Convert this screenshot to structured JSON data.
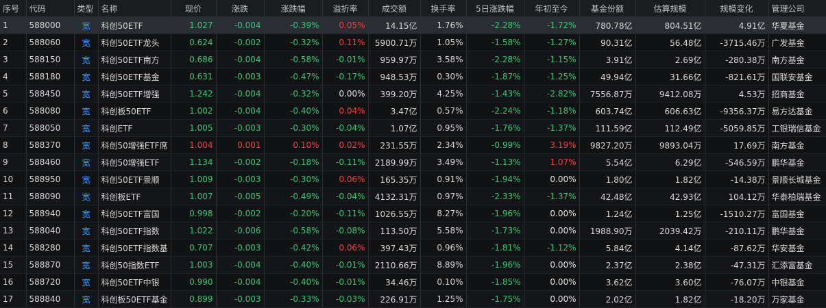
{
  "headers": [
    "序号",
    "代码",
    "类型",
    "名称",
    "现价",
    "涨跌",
    "涨跌幅",
    "溢折率",
    "成交额",
    "换手率",
    "5日涨跌幅",
    "年初至今",
    "基金份额",
    "估算规模",
    "规模变化",
    "管理公司"
  ],
  "colors": {
    "up": "#ff3b3b",
    "down": "#2ecc71",
    "neutral": "#e6e6e6",
    "type": "#3fa0ff"
  },
  "rows": [
    {
      "no": "1",
      "code": "588000",
      "type": "宽",
      "name": "科创50ETF",
      "price": "1.027",
      "chg": "-0.004",
      "pct": "-0.39%",
      "prem": "0.05%",
      "amount": "14.15亿",
      "turnover": "1.76%",
      "d5": "-2.28%",
      "ytd": "-1.72%",
      "shares": "780.78亿",
      "scale": "804.51亿",
      "scale_chg": "4.91亿",
      "mgr": "华夏基金"
    },
    {
      "no": "2",
      "code": "588060",
      "type": "宽",
      "name": "科创50ETF龙头",
      "price": "0.624",
      "chg": "-0.002",
      "pct": "-0.32%",
      "prem": "0.11%",
      "amount": "5900.71万",
      "turnover": "1.05%",
      "d5": "-1.58%",
      "ytd": "-1.27%",
      "shares": "90.31亿",
      "scale": "56.48亿",
      "scale_chg": "-3715.46万",
      "mgr": "广发基金"
    },
    {
      "no": "3",
      "code": "588150",
      "type": "宽",
      "name": "科创50ETF南方",
      "price": "0.686",
      "chg": "-0.004",
      "pct": "-0.58%",
      "prem": "-0.01%",
      "amount": "959.97万",
      "turnover": "3.58%",
      "d5": "-2.28%",
      "ytd": "-1.15%",
      "shares": "3.91亿",
      "scale": "2.69亿",
      "scale_chg": "-280.38万",
      "mgr": "南方基金"
    },
    {
      "no": "4",
      "code": "588180",
      "type": "宽",
      "name": "科创50ETF基金",
      "price": "0.631",
      "chg": "-0.003",
      "pct": "-0.47%",
      "prem": "-0.17%",
      "amount": "948.53万",
      "turnover": "0.30%",
      "d5": "-1.87%",
      "ytd": "-1.25%",
      "shares": "49.94亿",
      "scale": "31.66亿",
      "scale_chg": "-821.61万",
      "mgr": "国联安基金"
    },
    {
      "no": "5",
      "code": "588450",
      "type": "宽",
      "name": "科创50ETF增强",
      "price": "1.242",
      "chg": "-0.004",
      "pct": "-0.32%",
      "prem": "0.00%",
      "amount": "399.20万",
      "turnover": "4.25%",
      "d5": "-1.43%",
      "ytd": "-2.82%",
      "shares": "7556.87万",
      "scale": "9412.08万",
      "scale_chg": "4.53万",
      "mgr": "招商基金"
    },
    {
      "no": "6",
      "code": "588080",
      "type": "宽",
      "name": "科创板50ETF",
      "price": "1.002",
      "chg": "-0.004",
      "pct": "-0.40%",
      "prem": "0.04%",
      "amount": "3.47亿",
      "turnover": "0.57%",
      "d5": "-2.24%",
      "ytd": "-1.18%",
      "shares": "603.74亿",
      "scale": "606.63亿",
      "scale_chg": "-9356.37万",
      "mgr": "易方达基金"
    },
    {
      "no": "7",
      "code": "588050",
      "type": "宽",
      "name": "科创ETF",
      "price": "1.005",
      "chg": "-0.003",
      "pct": "-0.30%",
      "prem": "-0.04%",
      "amount": "1.07亿",
      "turnover": "0.95%",
      "d5": "-1.76%",
      "ytd": "-1.37%",
      "shares": "111.59亿",
      "scale": "112.49亿",
      "scale_chg": "-5059.85万",
      "mgr": "工银瑞信基金"
    },
    {
      "no": "8",
      "code": "588370",
      "type": "宽",
      "name": "科创50增强ETF席",
      "price": "1.004",
      "chg": "0.001",
      "pct": "0.10%",
      "prem": "0.02%",
      "amount": "231.55万",
      "turnover": "2.34%",
      "d5": "-0.99%",
      "ytd": "3.19%",
      "shares": "9827.20万",
      "scale": "9893.04万",
      "scale_chg": "17.69万",
      "mgr": "南方基金"
    },
    {
      "no": "9",
      "code": "588460",
      "type": "宽",
      "name": "科创50增强ETF",
      "price": "1.134",
      "chg": "-0.002",
      "pct": "-0.18%",
      "prem": "-0.11%",
      "amount": "2189.99万",
      "turnover": "3.49%",
      "d5": "-1.13%",
      "ytd": "1.07%",
      "shares": "5.54亿",
      "scale": "6.29亿",
      "scale_chg": "-546.59万",
      "mgr": "鹏华基金"
    },
    {
      "no": "10",
      "code": "588950",
      "type": "宽",
      "name": "科创50ETF景顺",
      "price": "1.009",
      "chg": "-0.003",
      "pct": "-0.30%",
      "prem": "0.06%",
      "amount": "165.35万",
      "turnover": "0.91%",
      "d5": "-1.94%",
      "ytd": "0.00%",
      "shares": "1.80亿",
      "scale": "1.82亿",
      "scale_chg": "-14.38万",
      "mgr": "景顺长城基金"
    },
    {
      "no": "11",
      "code": "588090",
      "type": "宽",
      "name": "科创板ETF",
      "price": "1.007",
      "chg": "-0.005",
      "pct": "-0.49%",
      "prem": "-0.04%",
      "amount": "4132.31万",
      "turnover": "0.97%",
      "d5": "-2.33%",
      "ytd": "-1.37%",
      "shares": "42.48亿",
      "scale": "42.93亿",
      "scale_chg": "104.12万",
      "mgr": "华泰柏瑞基金"
    },
    {
      "no": "12",
      "code": "588940",
      "type": "宽",
      "name": "科创50ETF富国",
      "price": "0.998",
      "chg": "-0.002",
      "pct": "-0.20%",
      "prem": "-0.11%",
      "amount": "1026.55万",
      "turnover": "8.27%",
      "d5": "-1.96%",
      "ytd": "0.00%",
      "shares": "1.24亿",
      "scale": "1.25亿",
      "scale_chg": "-1510.27万",
      "mgr": "富国基金"
    },
    {
      "no": "13",
      "code": "588040",
      "type": "宽",
      "name": "科创50ETF指数",
      "price": "1.022",
      "chg": "-0.006",
      "pct": "-0.58%",
      "prem": "-0.08%",
      "amount": "113.50万",
      "turnover": "5.58%",
      "d5": "-1.73%",
      "ytd": "0.00%",
      "shares": "1988.90万",
      "scale": "2039.42万",
      "scale_chg": "-210.11万",
      "mgr": "鹏华基金"
    },
    {
      "no": "14",
      "code": "588280",
      "type": "宽",
      "name": "科创50ETF指数基",
      "price": "0.707",
      "chg": "-0.003",
      "pct": "-0.42%",
      "prem": "0.06%",
      "amount": "397.43万",
      "turnover": "0.96%",
      "d5": "-1.81%",
      "ytd": "-1.12%",
      "shares": "5.84亿",
      "scale": "4.14亿",
      "scale_chg": "-87.62万",
      "mgr": "华安基金"
    },
    {
      "no": "15",
      "code": "588870",
      "type": "宽",
      "name": "科创50指数ETF",
      "price": "1.003",
      "chg": "-0.004",
      "pct": "-0.40%",
      "prem": "-0.01%",
      "amount": "2110.66万",
      "turnover": "8.89%",
      "d5": "-1.96%",
      "ytd": "0.00%",
      "shares": "2.37亿",
      "scale": "2.38亿",
      "scale_chg": "-47.31万",
      "mgr": "汇添富基金"
    },
    {
      "no": "16",
      "code": "588720",
      "type": "宽",
      "name": "科创50ETF中银",
      "price": "0.990",
      "chg": "-0.004",
      "pct": "-0.40%",
      "prem": "-0.01%",
      "amount": "34.46万",
      "turnover": "0.10%",
      "d5": "-1.85%",
      "ytd": "0.00%",
      "shares": "3.62亿",
      "scale": "3.60亿",
      "scale_chg": "-76.07万",
      "mgr": "中银基金"
    },
    {
      "no": "17",
      "code": "588840",
      "type": "宽",
      "name": "科创板50ETF基金",
      "price": "0.899",
      "chg": "-0.003",
      "pct": "-0.33%",
      "prem": "-0.03%",
      "amount": "226.91万",
      "turnover": "1.25%",
      "d5": "-1.75%",
      "ytd": "0.00%",
      "shares": "2.02亿",
      "scale": "1.82亿",
      "scale_chg": "-18.20万",
      "mgr": "万家基金"
    }
  ]
}
